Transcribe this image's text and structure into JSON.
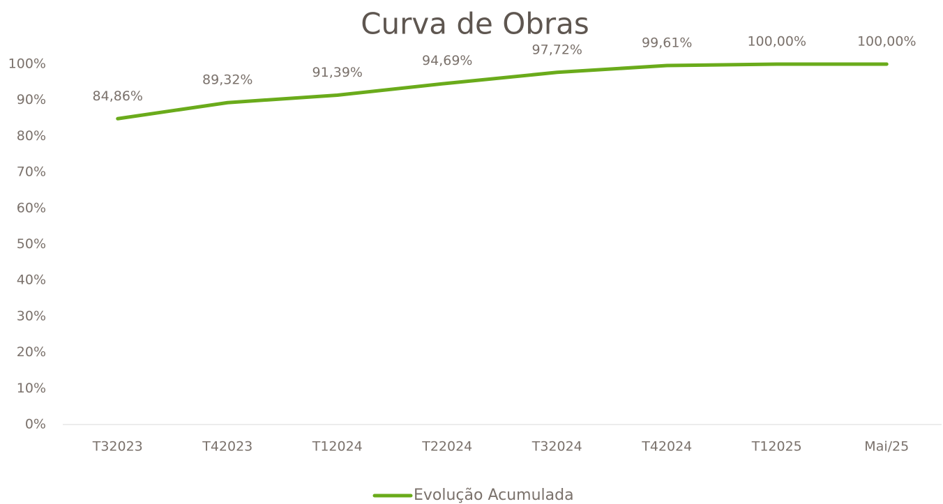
{
  "chart_data": {
    "type": "line",
    "title": "Curva de Obras",
    "categories": [
      "T32023",
      "T42023",
      "T12024",
      "T22024",
      "T32024",
      "T42024",
      "T12025",
      "Mai/25"
    ],
    "series": [
      {
        "name": "Evolução Acumulada",
        "color": "#6aab1b",
        "values": [
          84.86,
          89.32,
          91.39,
          94.69,
          97.72,
          99.61,
          100.0,
          100.0
        ],
        "value_labels": [
          "84,86%",
          "89,32%",
          "91,39%",
          "94,69%",
          "97,72%",
          "99,61%",
          "100,00%",
          "100,00%"
        ]
      }
    ],
    "ylim": [
      0,
      100
    ],
    "yticks": [
      {
        "value": 0,
        "label": "0%"
      },
      {
        "value": 10,
        "label": "10%"
      },
      {
        "value": 20,
        "label": "20%"
      },
      {
        "value": 30,
        "label": "30%"
      },
      {
        "value": 40,
        "label": "40%"
      },
      {
        "value": 50,
        "label": "50%"
      },
      {
        "value": 60,
        "label": "60%"
      },
      {
        "value": 70,
        "label": "70%"
      },
      {
        "value": 80,
        "label": "80%"
      },
      {
        "value": 90,
        "label": "90%"
      },
      {
        "value": 100,
        "label": "100%"
      }
    ],
    "grid": false,
    "legend": "bottom"
  }
}
